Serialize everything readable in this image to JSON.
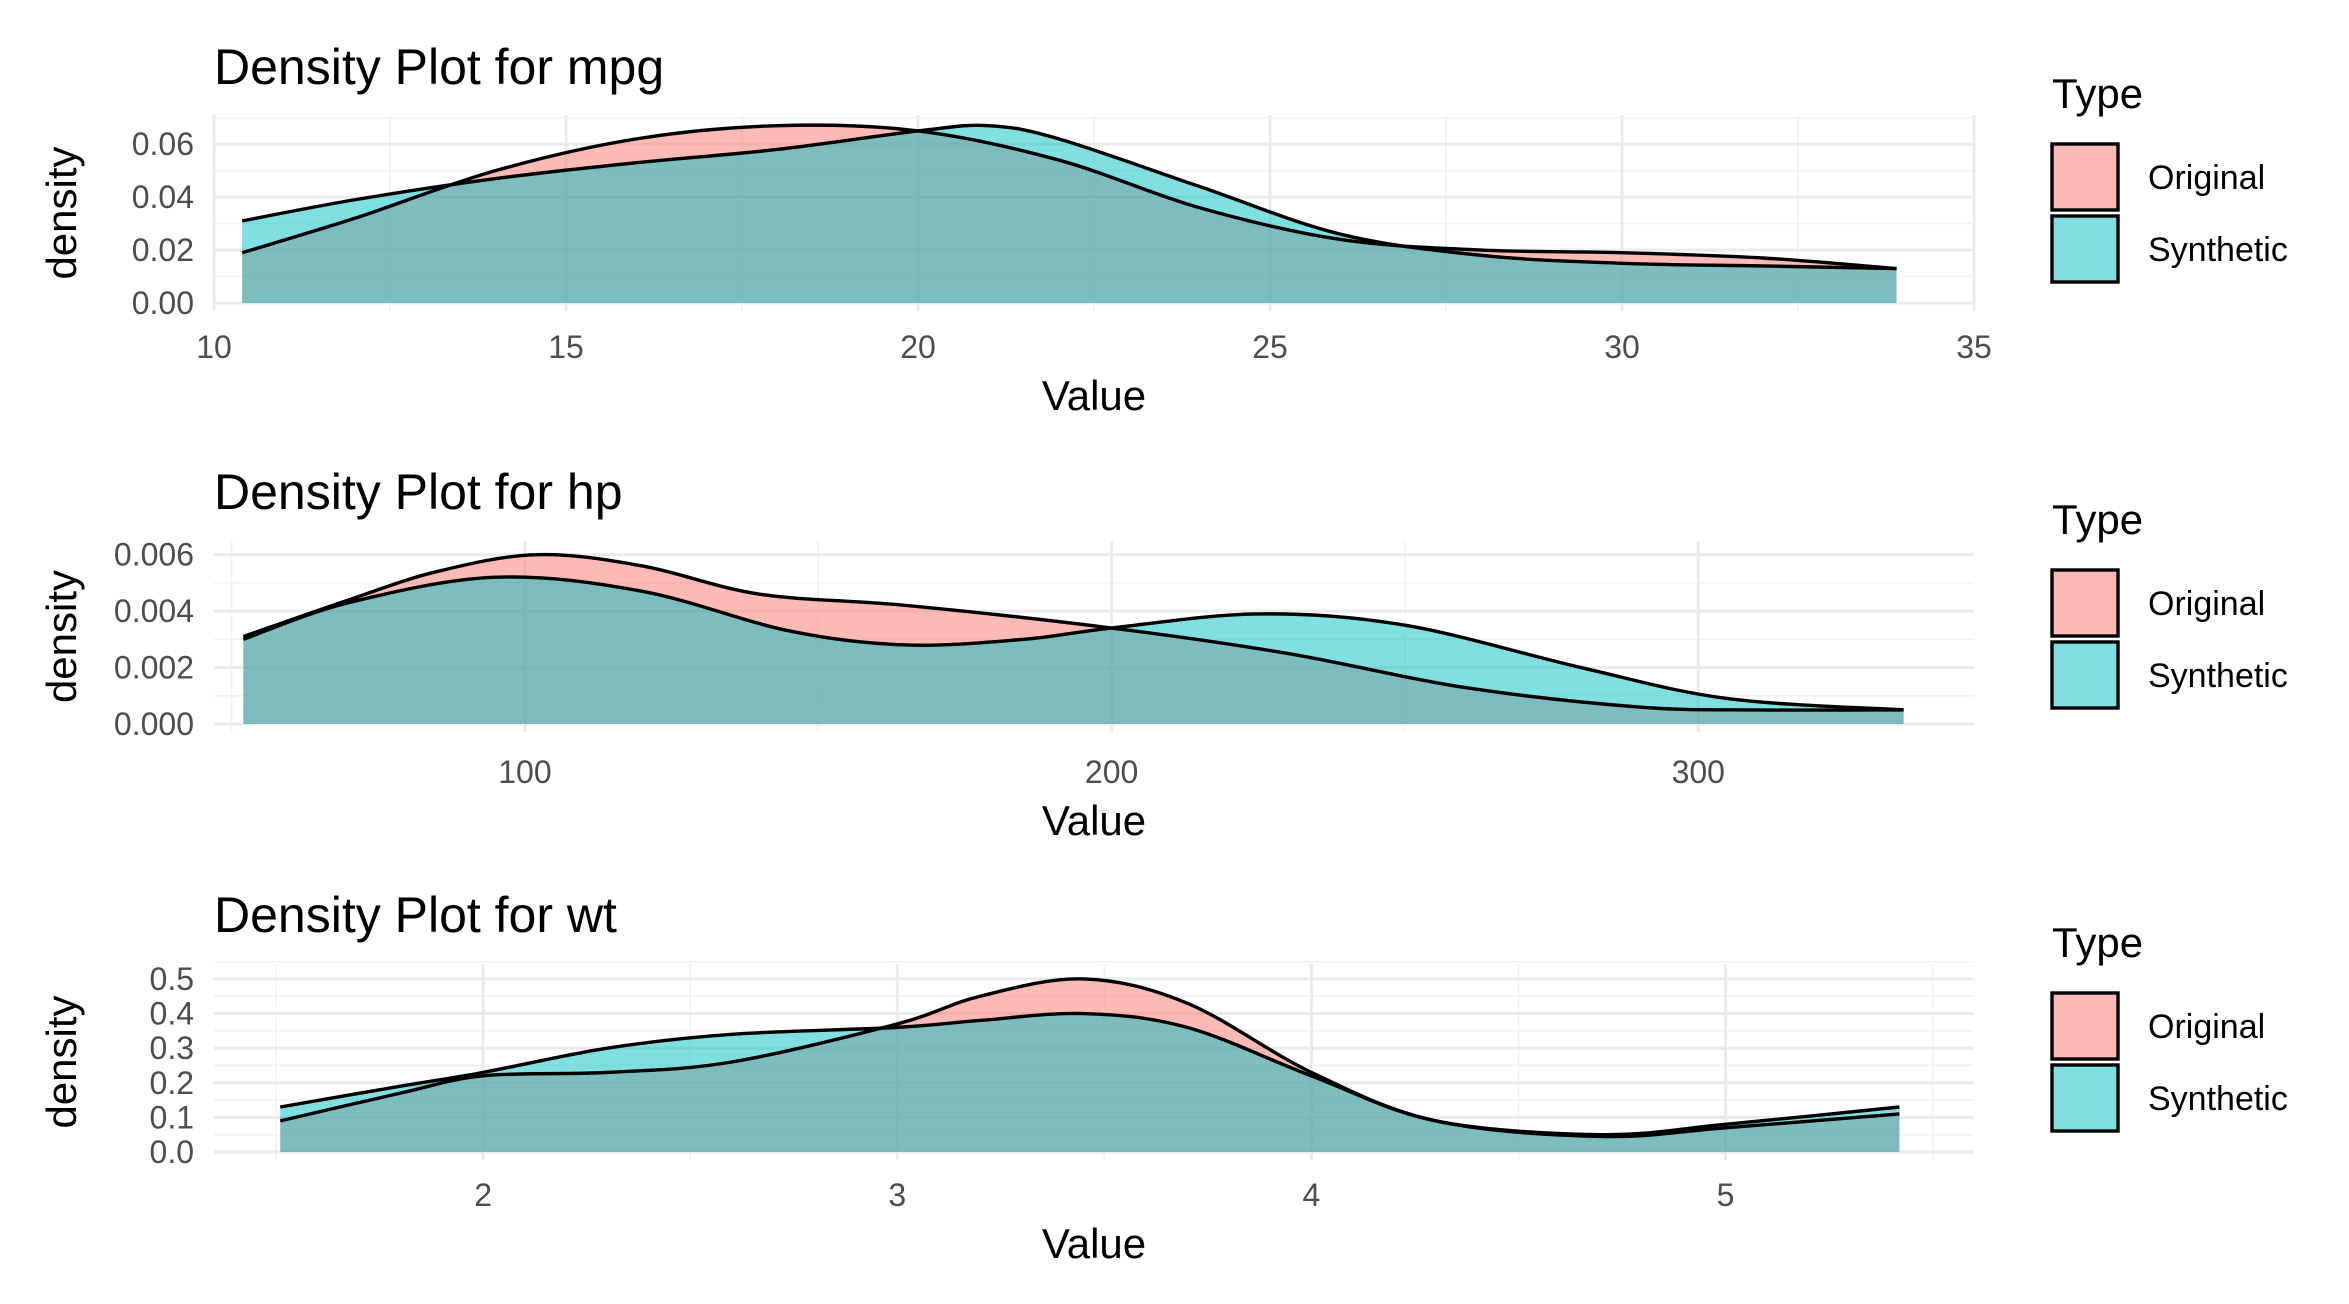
{
  "chart_data": [
    {
      "type": "area",
      "title": "Density Plot for mpg",
      "xlabel": "Value",
      "ylabel": "density",
      "xlim": [
        10,
        35
      ],
      "ylim": [
        0,
        0.068
      ],
      "xticks": [
        10,
        15,
        20,
        25,
        30,
        35
      ],
      "xtick_labels": [
        "10",
        "15",
        "20",
        "25",
        "30",
        "35"
      ],
      "yticks": [
        0,
        0.02,
        0.04,
        0.06
      ],
      "ytick_labels": [
        "0.00",
        "0.02",
        "0.04",
        "0.06"
      ],
      "grid": true,
      "legend": {
        "title": "Type",
        "position": "right"
      },
      "series": [
        {
          "name": "Original",
          "color": "#F8766D",
          "x": [
            10.4,
            12,
            14,
            16,
            18,
            20,
            22,
            24,
            26,
            28,
            30,
            32,
            33.9
          ],
          "values": [
            0.019,
            0.032,
            0.05,
            0.062,
            0.067,
            0.065,
            0.054,
            0.036,
            0.024,
            0.02,
            0.019,
            0.017,
            0.013
          ]
        },
        {
          "name": "Synthetic",
          "color": "#00BFC4",
          "x": [
            10.4,
            12,
            14,
            16,
            18,
            20,
            21,
            22,
            24,
            26,
            28,
            30,
            32,
            33.9
          ],
          "values": [
            0.031,
            0.039,
            0.047,
            0.053,
            0.058,
            0.065,
            0.067,
            0.062,
            0.044,
            0.026,
            0.018,
            0.015,
            0.014,
            0.013
          ]
        }
      ]
    },
    {
      "type": "area",
      "title": "Density Plot for hp",
      "xlabel": "Value",
      "ylabel": "density",
      "xlim": [
        47,
        347
      ],
      "ylim": [
        0,
        0.0062
      ],
      "xticks": [
        100,
        200,
        300
      ],
      "xtick_labels": [
        "100",
        "200",
        "300"
      ],
      "yticks": [
        0,
        0.002,
        0.004,
        0.006
      ],
      "ytick_labels": [
        "0.000",
        "0.002",
        "0.004",
        "0.006"
      ],
      "grid": true,
      "legend": {
        "title": "Type",
        "position": "right"
      },
      "series": [
        {
          "name": "Original",
          "color": "#F8766D",
          "x": [
            52,
            70,
            85,
            102,
            120,
            140,
            165,
            200,
            230,
            260,
            290,
            310,
            335
          ],
          "values": [
            0.0031,
            0.0044,
            0.0054,
            0.006,
            0.0056,
            0.0046,
            0.0042,
            0.0034,
            0.0025,
            0.0013,
            0.0006,
            0.0005,
            0.0005
          ]
        },
        {
          "name": "Synthetic",
          "color": "#00BFC4",
          "x": [
            52,
            70,
            95,
            120,
            145,
            165,
            185,
            200,
            225,
            250,
            280,
            305,
            335
          ],
          "values": [
            0.003,
            0.0043,
            0.0052,
            0.0047,
            0.0033,
            0.0028,
            0.003,
            0.0034,
            0.0039,
            0.0035,
            0.002,
            0.0009,
            0.0005
          ]
        }
      ]
    },
    {
      "type": "area",
      "title": "Density Plot for wt",
      "xlabel": "Value",
      "ylabel": "density",
      "xlim": [
        1.35,
        5.6
      ],
      "ylim": [
        0,
        0.52
      ],
      "xticks": [
        2,
        3,
        4,
        5
      ],
      "xtick_labels": [
        "2",
        "3",
        "4",
        "5"
      ],
      "yticks": [
        0,
        0.1,
        0.2,
        0.3,
        0.4,
        0.5
      ],
      "ytick_labels": [
        "0.0",
        "0.1",
        "0.2",
        "0.3",
        "0.4",
        "0.5"
      ],
      "grid": true,
      "legend": {
        "title": "Type",
        "position": "right"
      },
      "series": [
        {
          "name": "Original",
          "color": "#F8766D",
          "x": [
            1.51,
            1.8,
            2.0,
            2.3,
            2.6,
            3.0,
            3.2,
            3.45,
            3.7,
            4.0,
            4.3,
            4.7,
            5.0,
            5.42
          ],
          "values": [
            0.09,
            0.17,
            0.22,
            0.23,
            0.26,
            0.37,
            0.45,
            0.5,
            0.43,
            0.23,
            0.09,
            0.045,
            0.07,
            0.11
          ]
        },
        {
          "name": "Synthetic",
          "color": "#00BFC4",
          "x": [
            1.51,
            1.8,
            2.0,
            2.3,
            2.6,
            3.0,
            3.2,
            3.45,
            3.7,
            4.0,
            4.3,
            4.7,
            5.0,
            5.42
          ],
          "values": [
            0.13,
            0.19,
            0.23,
            0.3,
            0.34,
            0.36,
            0.38,
            0.4,
            0.36,
            0.22,
            0.09,
            0.05,
            0.08,
            0.13
          ]
        }
      ]
    }
  ]
}
